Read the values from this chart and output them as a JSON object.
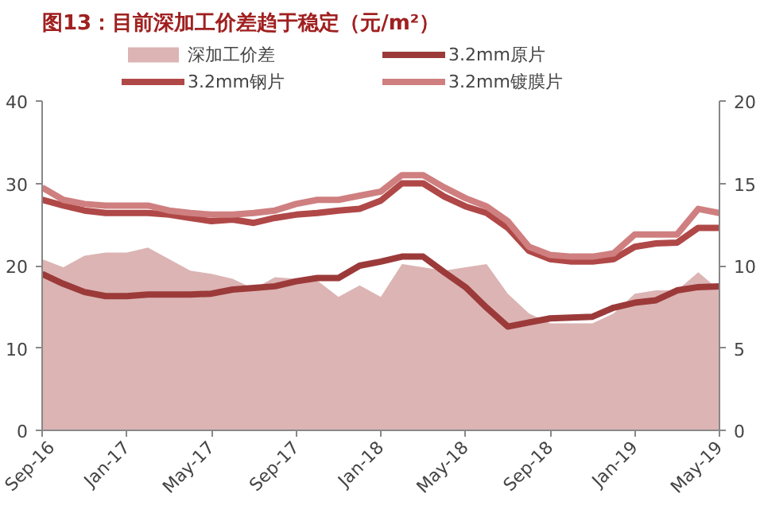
{
  "chart_data": {
    "type": "line",
    "title": "图13：目前深加工价差趋于稳定（元/m²）",
    "x": [
      "2016-09",
      "2016-10",
      "2016-11",
      "2016-12",
      "2017-01",
      "2017-02",
      "2017-03",
      "2017-04",
      "2017-05",
      "2017-06",
      "2017-07",
      "2017-08",
      "2017-09",
      "2017-10",
      "2017-11",
      "2017-12",
      "2018-01",
      "2018-02",
      "2018-03",
      "2018-04",
      "2018-05",
      "2018-06",
      "2018-07",
      "2018-08",
      "2018-09",
      "2018-10",
      "2018-11",
      "2018-12",
      "2019-01",
      "2019-02",
      "2019-03",
      "2019-04",
      "2019-05"
    ],
    "series": [
      {
        "name": "深加工价差",
        "type": "area",
        "axis": "y2",
        "color": "#dcb4b4",
        "values": [
          10.4,
          9.9,
          10.6,
          10.8,
          10.8,
          11.1,
          10.4,
          9.7,
          9.5,
          9.2,
          8.6,
          9.3,
          9.2,
          9.1,
          8.1,
          8.8,
          8.1,
          10.1,
          9.9,
          9.7,
          9.9,
          10.1,
          8.3,
          7.1,
          6.5,
          6.5,
          6.5,
          7.1,
          8.3,
          8.5,
          8.5,
          9.6,
          8.5
        ]
      },
      {
        "name": "3.2mm原片",
        "color": "#9c3a3a",
        "values": [
          19.0,
          17.8,
          16.8,
          16.3,
          16.3,
          16.5,
          16.5,
          16.5,
          16.6,
          17.1,
          17.3,
          17.5,
          18.1,
          18.5,
          18.5,
          20.0,
          20.5,
          21.1,
          21.1,
          19.2,
          17.4,
          14.9,
          12.6,
          13.1,
          13.6,
          13.7,
          13.8,
          14.9,
          15.5,
          15.8,
          17.0,
          17.4,
          17.5
        ]
      },
      {
        "name": "3.2mm钢片",
        "color": "#b04848",
        "values": [
          28.0,
          27.3,
          26.7,
          26.4,
          26.4,
          26.4,
          26.2,
          25.8,
          25.4,
          25.6,
          25.2,
          25.8,
          26.2,
          26.4,
          26.7,
          26.9,
          27.9,
          30.0,
          30.0,
          28.4,
          27.2,
          26.4,
          24.6,
          21.8,
          20.8,
          20.5,
          20.5,
          20.8,
          22.3,
          22.7,
          22.8,
          24.6,
          24.6
        ]
      },
      {
        "name": "3.2mm镀膜片",
        "color": "#cf7f7f",
        "values": [
          29.5,
          28.0,
          27.5,
          27.3,
          27.3,
          27.3,
          26.7,
          26.4,
          26.2,
          26.2,
          26.4,
          26.7,
          27.5,
          28.0,
          28.0,
          28.5,
          29.0,
          31.0,
          31.0,
          29.5,
          28.2,
          27.2,
          25.4,
          22.3,
          21.3,
          21.1,
          21.1,
          21.5,
          23.8,
          23.8,
          23.8,
          26.9,
          26.4
        ]
      }
    ],
    "xlim": [
      "2016-09",
      "2019-05"
    ],
    "xticks": [
      {
        "value": "2016-09",
        "label": "Sep-16"
      },
      {
        "value": "2017-01",
        "label": "Jan-17"
      },
      {
        "value": "2017-05",
        "label": "May-17"
      },
      {
        "value": "2017-09",
        "label": "Sep-17"
      },
      {
        "value": "2018-01",
        "label": "Jan-18"
      },
      {
        "value": "2018-05",
        "label": "May-18"
      },
      {
        "value": "2018-09",
        "label": "Sep-18"
      },
      {
        "value": "2019-01",
        "label": "Jan-19"
      },
      {
        "value": "2019-05",
        "label": "May-19"
      }
    ],
    "ylim": [
      0,
      40
    ],
    "yticks": [
      0,
      10,
      20,
      30,
      40
    ],
    "y2lim": [
      0,
      20
    ],
    "y2ticks": [
      0,
      5,
      10,
      15,
      20
    ],
    "grid": false,
    "legend": "top",
    "line_style": "solid",
    "marker": "none"
  }
}
